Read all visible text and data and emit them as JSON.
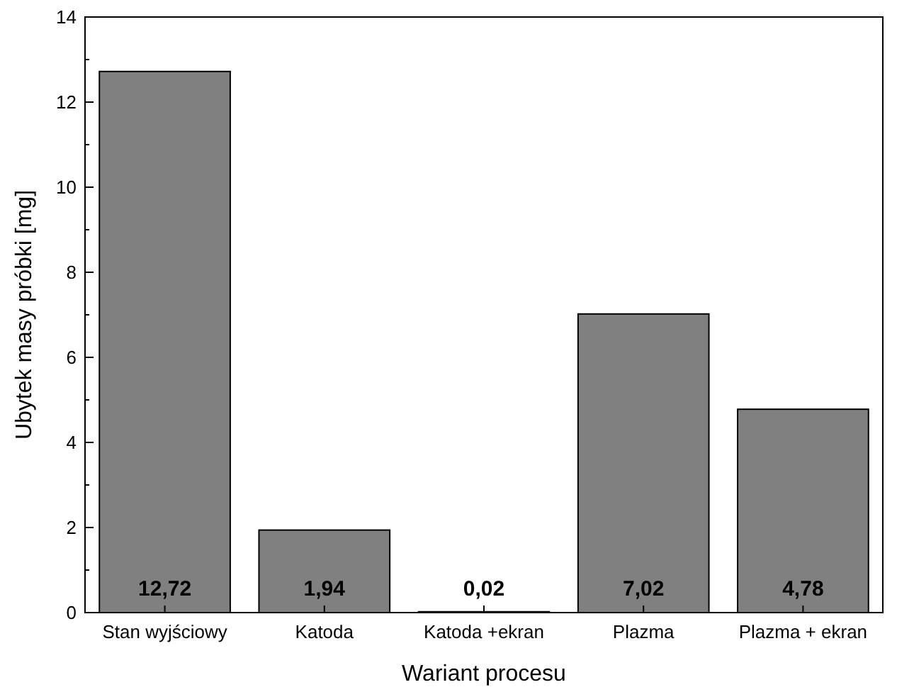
{
  "chart_data": {
    "type": "bar",
    "xlabel": "Wariant procesu",
    "ylabel": "Ubytek masy próbki [mg]",
    "categories": [
      "Stan wyjściowy",
      "Katoda",
      "Katoda +ekran",
      "Plazma",
      "Plazma + ekran"
    ],
    "values": [
      12.72,
      1.94,
      0.02,
      7.02,
      4.78
    ],
    "value_labels": [
      "12,72",
      "1,94",
      "0,02",
      "7,02",
      "4,78"
    ],
    "color": "#808080",
    "ylim": [
      0,
      14
    ],
    "yticks": [
      0,
      {
        "value": 1,
        "label": null
      },
      2,
      {
        "value": 3,
        "label": null
      },
      4,
      {
        "value": 5,
        "label": null
      },
      6,
      {
        "value": 7,
        "label": null
      },
      8,
      {
        "value": 9,
        "label": null
      },
      10,
      {
        "value": 11,
        "label": null
      },
      12,
      {
        "value": 13,
        "label": null
      },
      14
    ],
    "grid": false
  }
}
